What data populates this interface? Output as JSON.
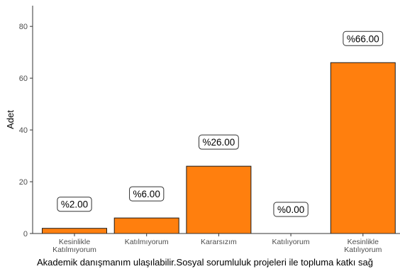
{
  "chart_data": {
    "type": "bar",
    "categories": [
      [
        "Kesinlikle",
        "Katılmıyorum"
      ],
      [
        "Katılmıyorum"
      ],
      [
        "Kararsızım"
      ],
      [
        "Katılıyorum"
      ],
      [
        "Kesinlikle",
        "Katılıyorum"
      ]
    ],
    "values": [
      2,
      6,
      26,
      0,
      66
    ],
    "data_labels": [
      "%2.00",
      "%6.00",
      "%26.00",
      "%0.00",
      "%66.00"
    ],
    "xlabel": "Akademik danışmanım ulaşılabilir.Sosyal sorumluluk projeleri ile topluma katkı sağ",
    "ylabel": "Adet",
    "ylim": [
      0,
      88
    ],
    "yticks": [
      0,
      20,
      40,
      60,
      80
    ],
    "bar_color": "#FF7F0E",
    "grid": false,
    "legend": "none"
  }
}
